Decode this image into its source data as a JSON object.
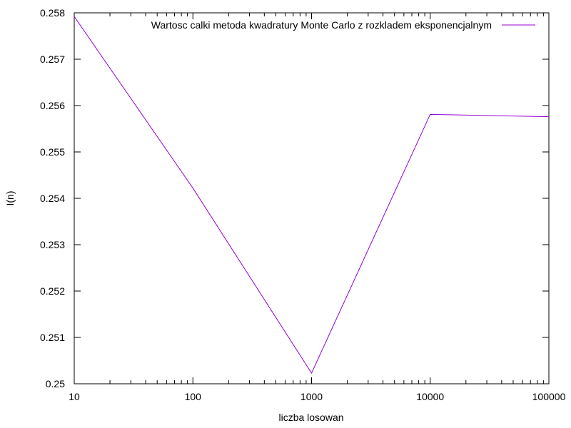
{
  "chart_data": {
    "type": "line",
    "title": "",
    "xlabel": "liczba losowan",
    "ylabel": "I(n)",
    "xscale": "log",
    "xlim": [
      10,
      100000
    ],
    "ylim": [
      0.25,
      0.258
    ],
    "x_ticks": [
      10,
      100,
      1000,
      10000,
      100000
    ],
    "x_tick_labels": [
      "10",
      "100",
      "1000",
      "10000",
      "100000"
    ],
    "y_ticks": [
      0.25,
      0.251,
      0.252,
      0.253,
      0.254,
      0.255,
      0.256,
      0.257,
      0.258
    ],
    "y_tick_labels": [
      "0.25",
      "0.251",
      "0.252",
      "0.253",
      "0.254",
      "0.255",
      "0.256",
      "0.257",
      "0.258"
    ],
    "grid": false,
    "legend_position": "top-right",
    "series": [
      {
        "name": "Wartosc calki metoda kwadratury Monte Carlo z rozkladem eksponencjalnym",
        "color": "#9400d3",
        "x": [
          10,
          100,
          1000,
          10000,
          100000
        ],
        "y": [
          0.25792,
          0.25422,
          0.25023,
          0.25581,
          0.25576
        ]
      }
    ]
  }
}
